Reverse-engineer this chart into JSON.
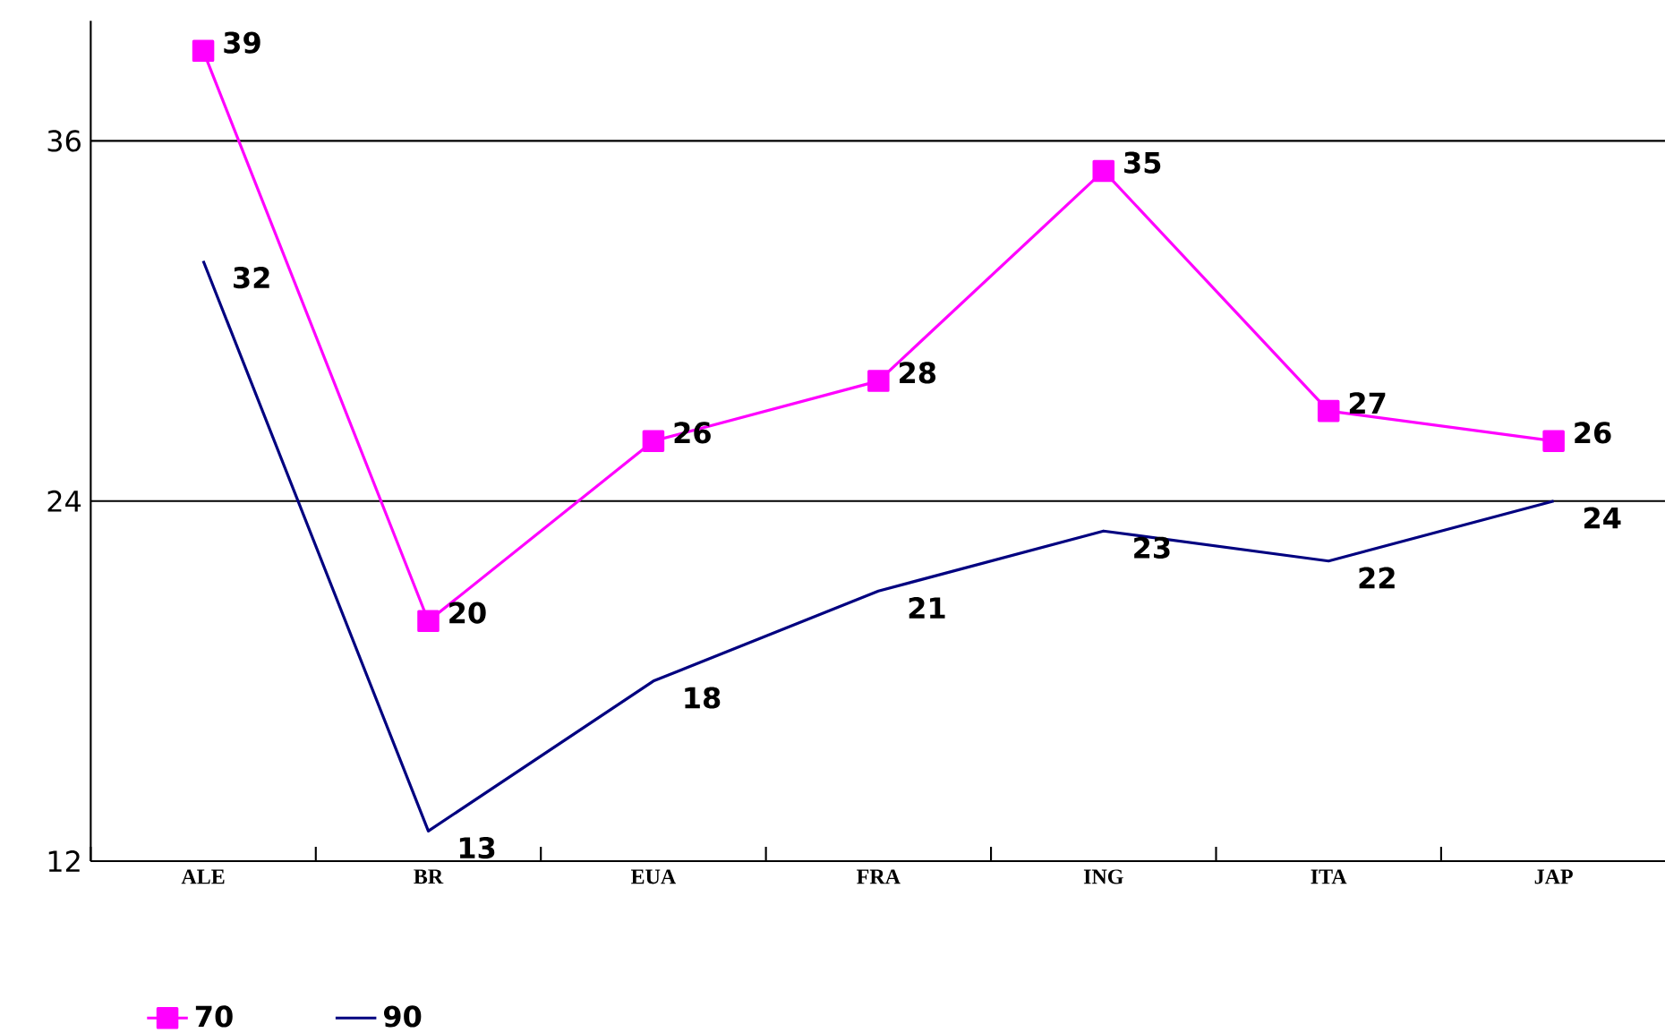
{
  "chart_data": {
    "type": "line",
    "categories": [
      "ALE",
      "BR",
      "EUA",
      "FRA",
      "ING",
      "ITA",
      "JAP"
    ],
    "series": [
      {
        "name": "70",
        "color": "#ff00ff",
        "marker": "square",
        "values": [
          39,
          20,
          26,
          28,
          35,
          27,
          26
        ]
      },
      {
        "name": "90",
        "color": "#000080",
        "marker": "none",
        "values": [
          32,
          13,
          18,
          21,
          23,
          22,
          24
        ]
      }
    ],
    "ylim": [
      12,
      40
    ],
    "yticks": [
      12,
      24,
      36
    ],
    "grid": "y",
    "legend": "bottom left",
    "data_labels": true
  }
}
